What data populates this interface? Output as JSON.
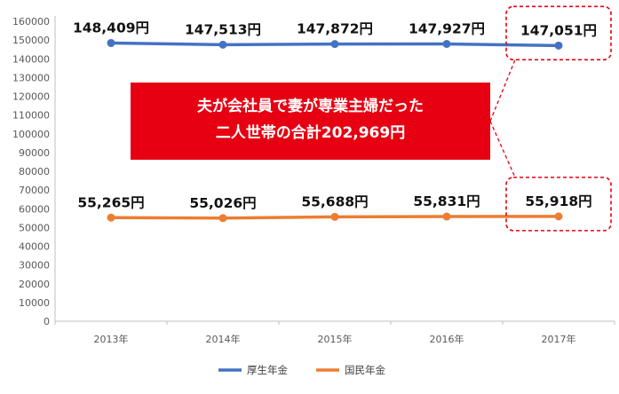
{
  "chart_data": {
    "type": "line",
    "categories": [
      "2013年",
      "2014年",
      "2015年",
      "2016年",
      "2017年"
    ],
    "ylim": [
      0,
      160000
    ],
    "yticks": [
      0,
      10000,
      20000,
      30000,
      40000,
      50000,
      60000,
      70000,
      80000,
      90000,
      100000,
      110000,
      120000,
      130000,
      140000,
      150000,
      160000
    ],
    "grid": false,
    "legend_position": "bottom",
    "series": [
      {
        "name": "厚生年金",
        "color": "#4472c4",
        "values": [
          148409,
          147513,
          147872,
          147927,
          147051
        ],
        "labels": [
          "148,409円",
          "147,513円",
          "147,872円",
          "147,927円",
          "147,051円"
        ]
      },
      {
        "name": "国民年金",
        "color": "#ed7d31",
        "values": [
          55265,
          55026,
          55688,
          55831,
          55918
        ],
        "labels": [
          "55,265円",
          "55,026円",
          "55,688円",
          "55,831円",
          "55,918円"
        ]
      }
    ],
    "annotation": {
      "lines": [
        "夫が会社員で妻が専業主婦だった",
        "二人世帯の合計202,969円"
      ],
      "background": "#e60012",
      "highlight_color": "#e60012",
      "highlighted_index": 4
    }
  }
}
